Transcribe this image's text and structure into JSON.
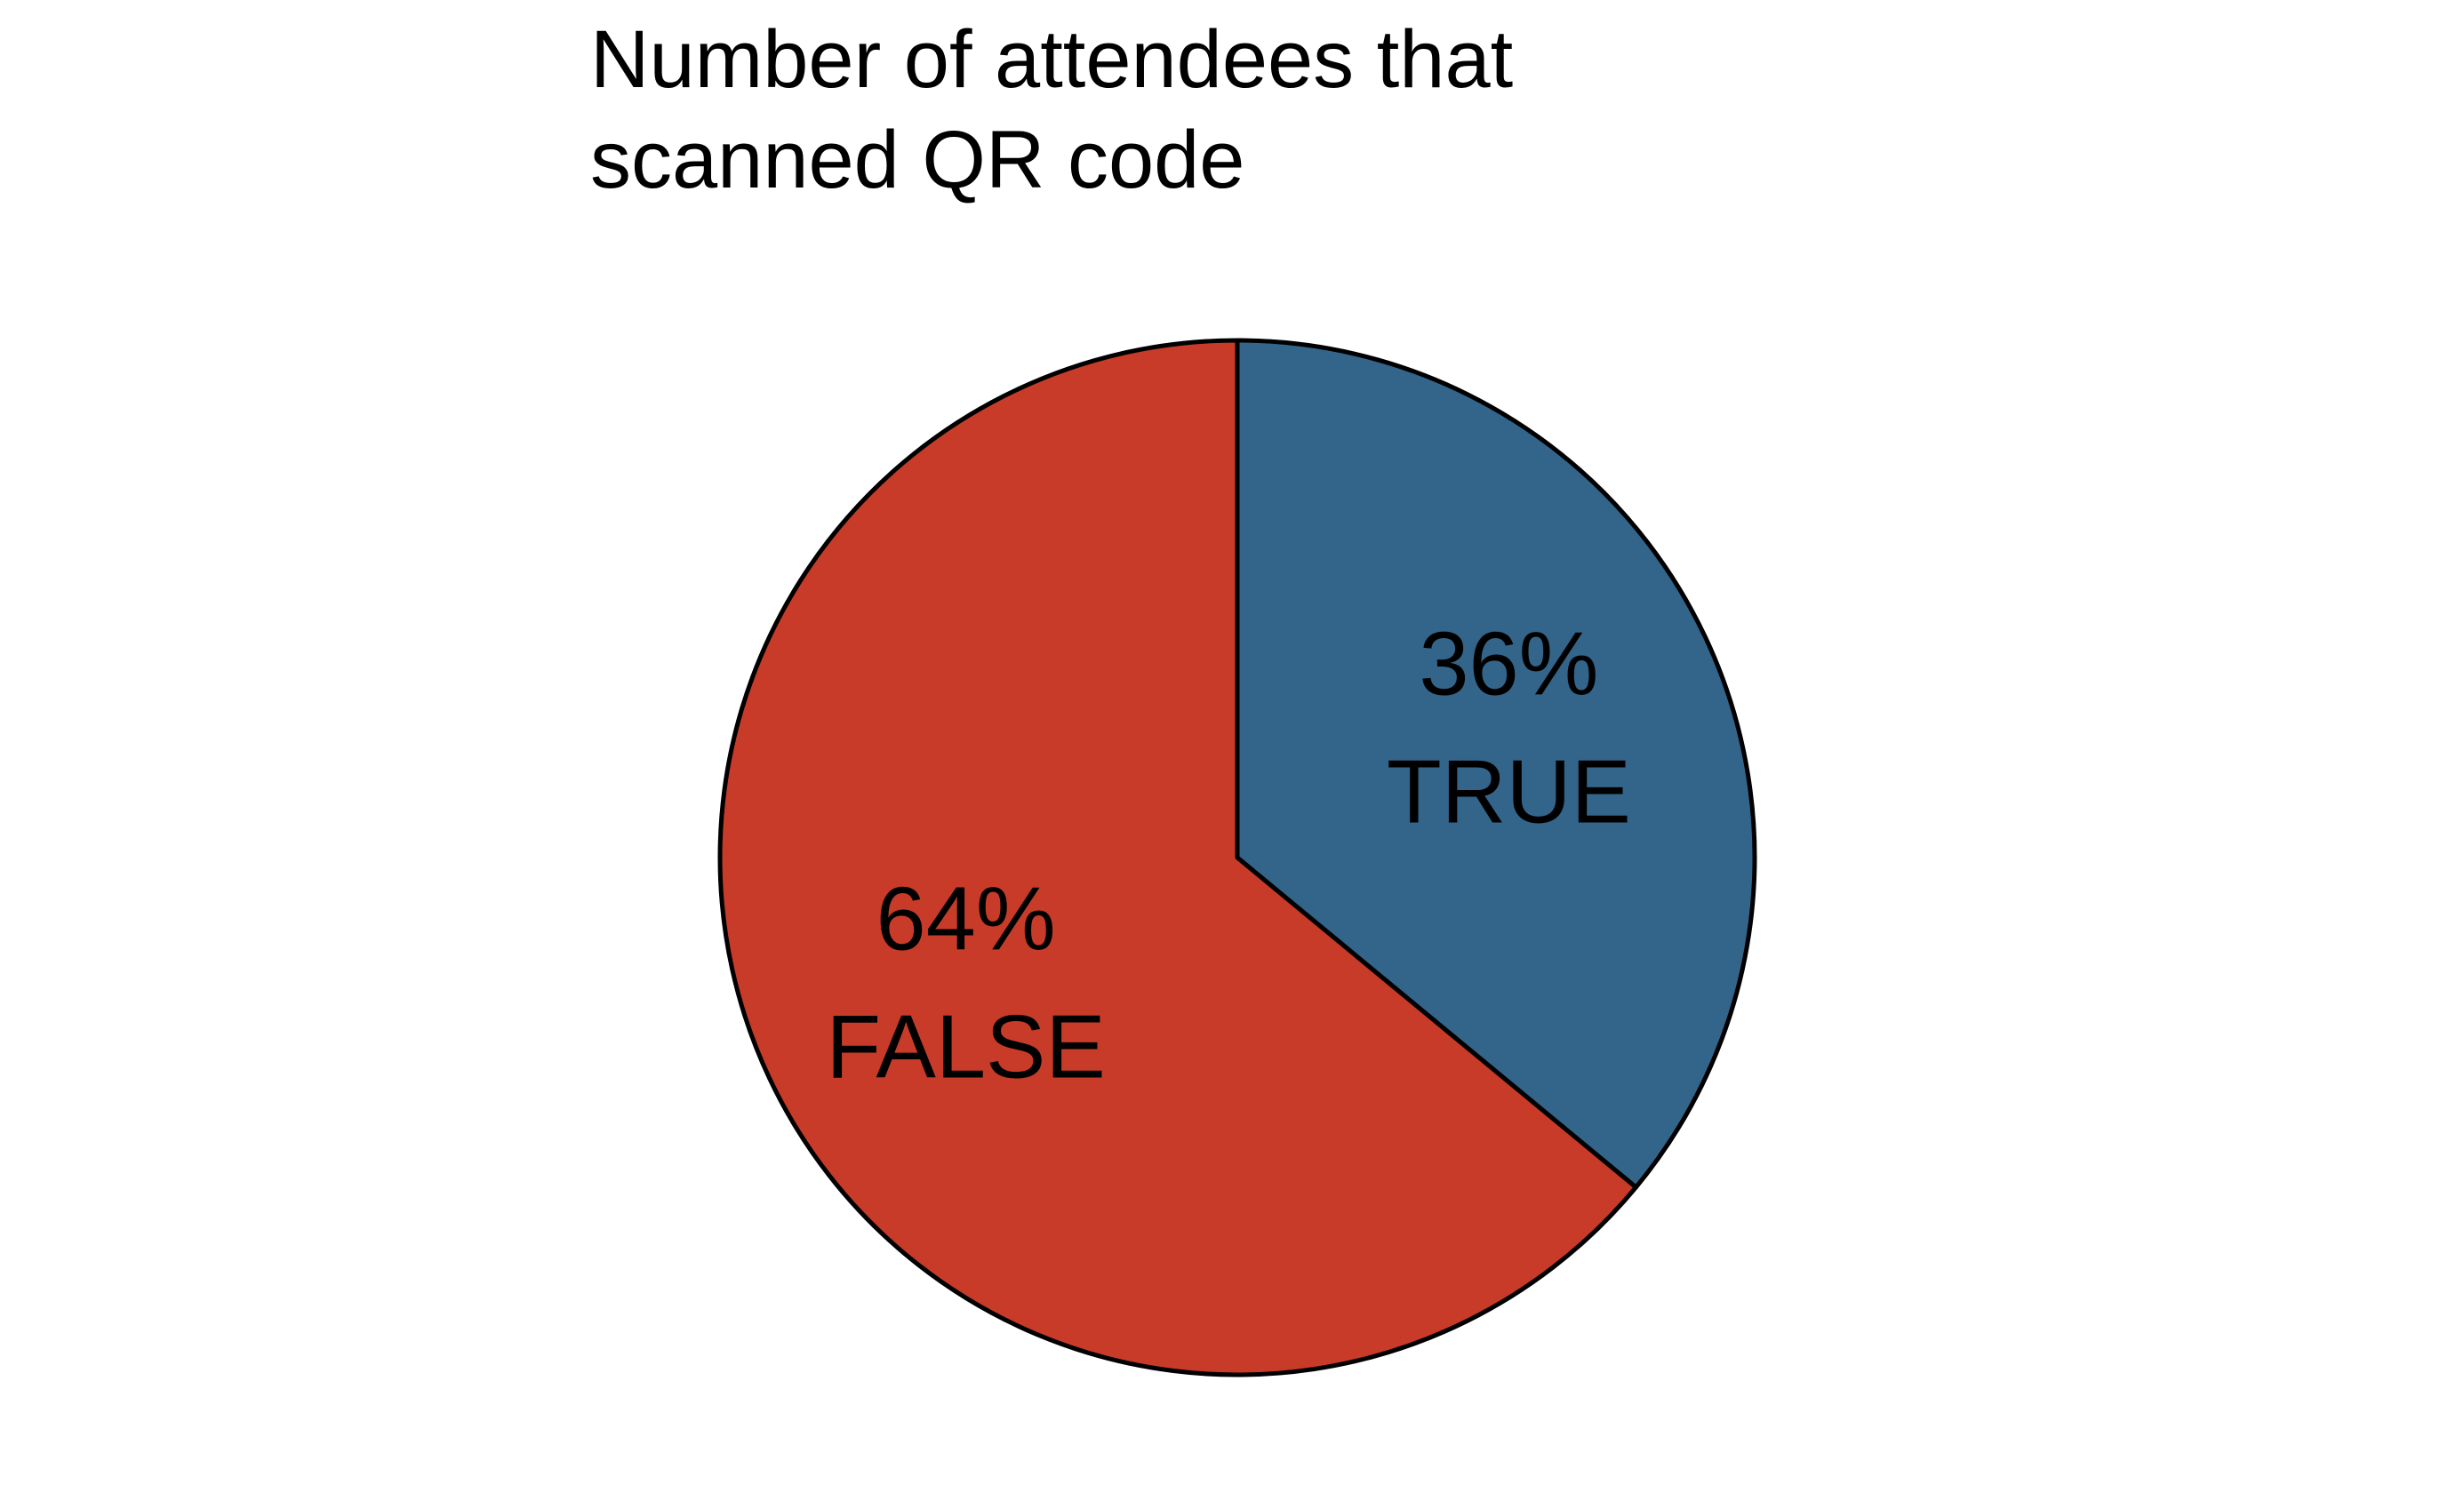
{
  "chart_data": {
    "type": "pie",
    "title_lines": [
      "Number of attendees that",
      "scanned QR code"
    ],
    "start_angle_deg": 0,
    "direction": "clockwise",
    "slices": [
      {
        "label": "TRUE",
        "value": 36,
        "percent_label": "36%",
        "color": "#336489"
      },
      {
        "label": "FALSE",
        "value": 64,
        "percent_label": "64%",
        "color": "#c83b28"
      }
    ],
    "stroke_color": "#000000"
  }
}
